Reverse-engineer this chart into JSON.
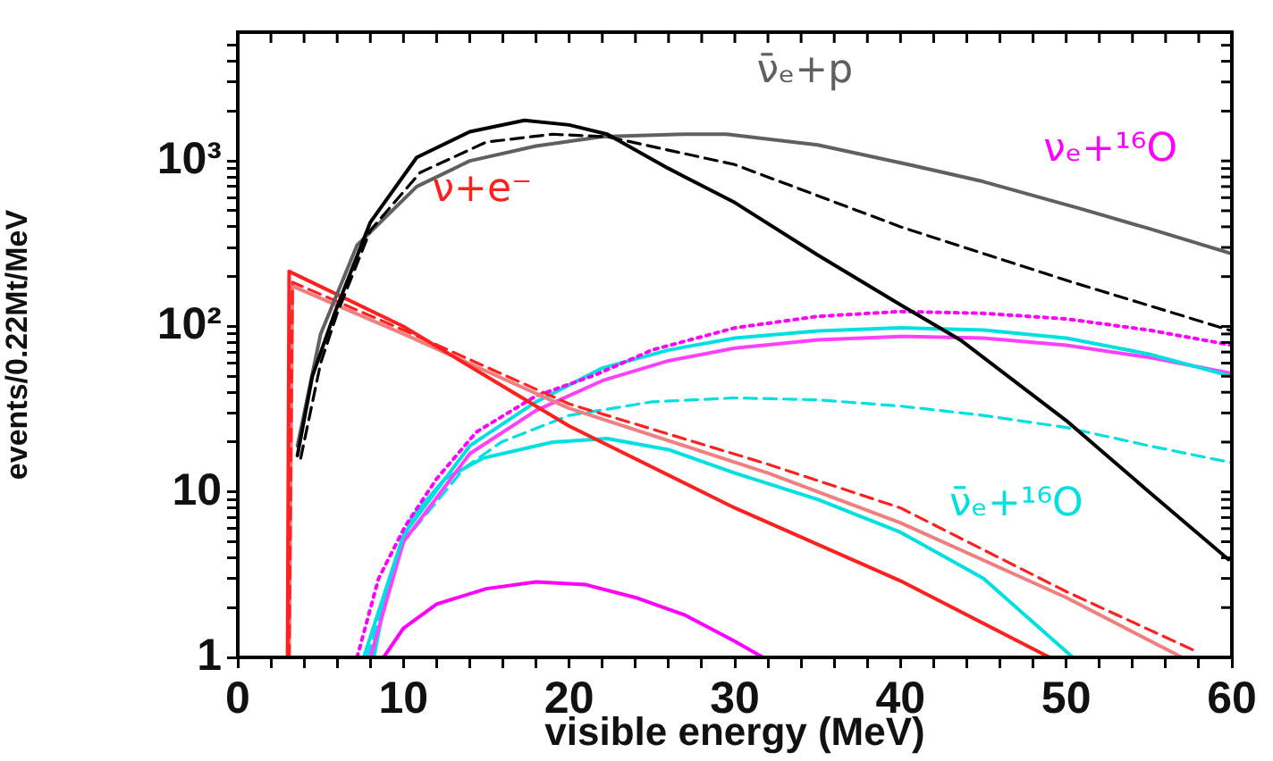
{
  "chart_data": {
    "type": "line",
    "xlabel": "visible energy (MeV)",
    "ylabel": "events/0.22Mt/MeV",
    "log": "y",
    "grid": false,
    "legend": false,
    "marker": "none",
    "xlim": [
      0,
      60
    ],
    "ylim": [
      1,
      6000
    ],
    "xticks": [
      0,
      {
        "value": 2,
        "label": null
      },
      {
        "value": 4,
        "label": null
      },
      {
        "value": 6,
        "label": null
      },
      {
        "value": 8,
        "label": null
      },
      10,
      {
        "value": 12,
        "label": null
      },
      {
        "value": 14,
        "label": null
      },
      {
        "value": 16,
        "label": null
      },
      {
        "value": 18,
        "label": null
      },
      20,
      {
        "value": 22,
        "label": null
      },
      {
        "value": 24,
        "label": null
      },
      {
        "value": 26,
        "label": null
      },
      {
        "value": 28,
        "label": null
      },
      30,
      {
        "value": 32,
        "label": null
      },
      {
        "value": 34,
        "label": null
      },
      {
        "value": 36,
        "label": null
      },
      {
        "value": 38,
        "label": null
      },
      40,
      {
        "value": 42,
        "label": null
      },
      {
        "value": 44,
        "label": null
      },
      {
        "value": 46,
        "label": null
      },
      {
        "value": 48,
        "label": null
      },
      50,
      {
        "value": 52,
        "label": null
      },
      {
        "value": 54,
        "label": null
      },
      {
        "value": 56,
        "label": null
      },
      {
        "value": 58,
        "label": null
      },
      60
    ],
    "yticks": [
      1,
      {
        "value": 2,
        "label": null
      },
      {
        "value": 3,
        "label": null
      },
      {
        "value": 4,
        "label": null
      },
      {
        "value": 5,
        "label": null
      },
      {
        "value": 6,
        "label": null
      },
      {
        "value": 7,
        "label": null
      },
      {
        "value": 8,
        "label": null
      },
      {
        "value": 9,
        "label": null
      },
      10,
      {
        "value": 20,
        "label": null
      },
      {
        "value": 30,
        "label": null
      },
      {
        "value": 40,
        "label": null
      },
      {
        "value": 50,
        "label": null
      },
      {
        "value": 60,
        "label": null
      },
      {
        "value": 70,
        "label": null
      },
      {
        "value": 80,
        "label": null
      },
      {
        "value": 90,
        "label": null
      },
      {
        "value": 100,
        "label": "10²"
      },
      {
        "value": 200,
        "label": null
      },
      {
        "value": 300,
        "label": null
      },
      {
        "value": 400,
        "label": null
      },
      {
        "value": 500,
        "label": null
      },
      {
        "value": 600,
        "label": null
      },
      {
        "value": 700,
        "label": null
      },
      {
        "value": 800,
        "label": null
      },
      {
        "value": 900,
        "label": null
      },
      {
        "value": 1000,
        "label": "10³"
      },
      {
        "value": 2000,
        "label": null
      },
      {
        "value": 3000,
        "label": null
      },
      {
        "value": 4000,
        "label": null
      },
      {
        "value": 5000,
        "label": null
      }
    ],
    "series": [
      {
        "color": "#000000",
        "line_style": "solid",
        "x": [
          3.6,
          4.5,
          5.8,
          8,
          10.8,
          14,
          17.3,
          20,
          22.3,
          26,
          30,
          35,
          40,
          43.6,
          50,
          55,
          59.8
        ],
        "values": [
          16.6,
          50,
          117,
          426,
          1050,
          1500,
          1760,
          1650,
          1450,
          900,
          560,
          270,
          135,
          83,
          27,
          10,
          3.9
        ]
      },
      {
        "color": "#000000",
        "line_style": "dashed",
        "x": [
          3.8,
          5,
          6,
          8,
          11,
          15,
          19,
          22.3,
          30,
          40,
          50,
          60
        ],
        "values": [
          16,
          60,
          120,
          380,
          850,
          1300,
          1450,
          1400,
          950,
          400,
          190,
          94
        ]
      },
      {
        "name": "ν̄ₑ+p",
        "color": "#606060",
        "line_style": "solid",
        "x": [
          3.6,
          5,
          7.2,
          10.8,
          14,
          18,
          22,
          27,
          29.5,
          35,
          40.3,
          45,
          51,
          55,
          60
        ],
        "values": [
          19,
          90,
          310,
          700,
          1000,
          1230,
          1400,
          1450,
          1450,
          1250,
          960,
          750,
          510,
          390,
          275
        ]
      },
      {
        "name": "ν+e⁻",
        "color": "#ff2020",
        "line_style": "solid",
        "x": [
          3,
          3.1,
          10,
          20,
          30,
          40,
          49
        ],
        "values": [
          1,
          215,
          100,
          25,
          8,
          2.9,
          1
        ]
      },
      {
        "color": "#ff2020",
        "line_style": "dashed",
        "x": [
          3.1,
          3.3,
          10,
          20,
          32,
          40,
          50,
          58
        ],
        "values": [
          1,
          185,
          95,
          34,
          14.7,
          8,
          2.5,
          1.07
        ]
      },
      {
        "color": "#f08080",
        "line_style": "solid",
        "x": [
          3.1,
          3.3,
          10,
          20,
          32,
          40,
          50,
          57
        ],
        "values": [
          1,
          175,
          90,
          32,
          13,
          6.5,
          2.3,
          1
        ]
      },
      {
        "name": "νₑ+¹⁶O",
        "color": "#ff00ff",
        "line_style": "dotted",
        "x": [
          7.2,
          8.5,
          10.1,
          12,
          14.4,
          18,
          21.6,
          25,
          30,
          35,
          40,
          45,
          50,
          55,
          60
        ],
        "values": [
          1,
          3,
          6.2,
          12,
          23,
          38,
          51,
          72,
          98,
          115,
          123,
          120,
          111,
          95,
          77
        ]
      },
      {
        "color": "#00e0e0",
        "line_style": "solid",
        "x": [
          7.6,
          10,
          14,
          18,
          22,
          26,
          30,
          35,
          40,
          45,
          50,
          55,
          60
        ],
        "values": [
          1,
          5.5,
          19,
          35,
          56,
          72,
          85,
          94,
          98,
          95,
          85,
          68,
          50
        ]
      },
      {
        "color": "#ff40ff",
        "line_style": "solid",
        "x": [
          8,
          10,
          14,
          18,
          22,
          26,
          30,
          35,
          40,
          45,
          50,
          55,
          60
        ],
        "values": [
          1,
          5,
          17,
          31,
          47,
          62,
          74,
          83,
          87,
          85,
          77,
          65,
          52
        ]
      },
      {
        "name": "ν̄ₑ+¹⁶O",
        "color": "#00e0e0",
        "line_style": "dashed",
        "x": [
          7.8,
          10,
          13.7,
          15.9,
          20,
          25,
          30,
          35,
          40,
          45,
          50,
          55,
          60
        ],
        "values": [
          1,
          5,
          14,
          20,
          29,
          35,
          37,
          36,
          33,
          29,
          24.5,
          19,
          15
        ]
      },
      {
        "color": "#00e0e0",
        "line_style": "solid",
        "x": [
          8.2,
          9,
          10.5,
          12.5,
          14.8,
          19,
          22.3,
          26,
          30,
          35,
          40,
          45,
          50.4
        ],
        "values": [
          1,
          2.5,
          7,
          12,
          16,
          20,
          21,
          18,
          13,
          9,
          5.7,
          3,
          1
        ]
      },
      {
        "color": "#ff00ff",
        "line_style": "solid",
        "x": [
          8.8,
          10,
          12,
          15,
          18,
          21,
          24,
          27,
          30,
          31.7
        ],
        "values": [
          1,
          1.5,
          2.1,
          2.6,
          2.86,
          2.75,
          2.3,
          1.8,
          1.25,
          1
        ]
      }
    ]
  }
}
